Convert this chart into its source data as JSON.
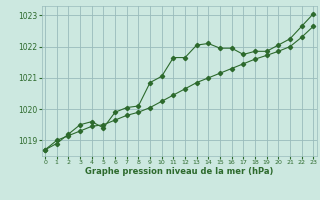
{
  "line1_x": [
    0,
    1,
    2,
    3,
    4,
    5,
    6,
    7,
    8,
    9,
    10,
    11,
    12,
    13,
    14,
    15,
    16,
    17,
    18,
    19,
    20,
    21,
    22,
    23
  ],
  "line1_y": [
    1018.7,
    1018.9,
    1019.2,
    1019.5,
    1019.6,
    1019.4,
    1019.9,
    1020.05,
    1020.1,
    1020.85,
    1021.05,
    1021.65,
    1021.65,
    1022.05,
    1022.1,
    1021.95,
    1021.95,
    1021.75,
    1021.85,
    1021.85,
    1022.05,
    1022.25,
    1022.65,
    1023.05
  ],
  "line2_x": [
    0,
    1,
    2,
    3,
    4,
    5,
    6,
    7,
    8,
    9,
    10,
    11,
    12,
    13,
    14,
    15,
    16,
    17,
    18,
    19,
    20,
    21,
    22,
    23
  ],
  "line2_y": [
    1018.7,
    1019.0,
    1019.15,
    1019.3,
    1019.45,
    1019.5,
    1019.65,
    1019.8,
    1019.9,
    1020.05,
    1020.25,
    1020.45,
    1020.65,
    1020.85,
    1021.0,
    1021.15,
    1021.3,
    1021.45,
    1021.6,
    1021.72,
    1021.85,
    1022.0,
    1022.3,
    1022.65
  ],
  "bg_color": "#cce8e0",
  "line_color": "#2d6a2d",
  "grid_color": "#99bbbb",
  "xlabel": "Graphe pression niveau de la mer (hPa)",
  "ylim": [
    1018.5,
    1023.3
  ],
  "xlim": [
    -0.3,
    23.3
  ],
  "yticks": [
    1019,
    1020,
    1021,
    1022,
    1023
  ],
  "xticks": [
    0,
    1,
    2,
    3,
    4,
    5,
    6,
    7,
    8,
    9,
    10,
    11,
    12,
    13,
    14,
    15,
    16,
    17,
    18,
    19,
    20,
    21,
    22,
    23
  ]
}
